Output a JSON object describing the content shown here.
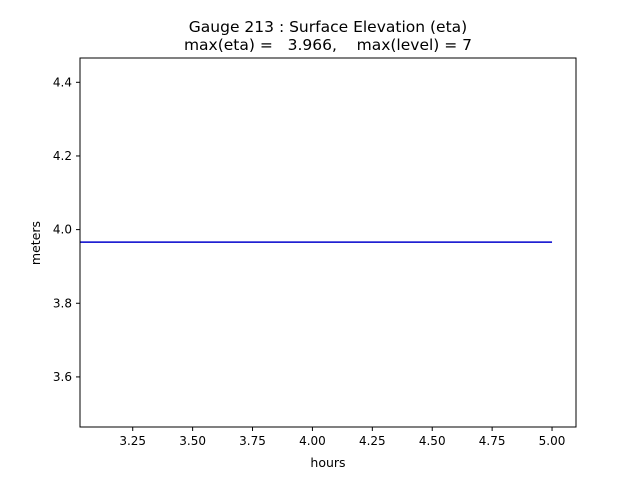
{
  "chart_data": {
    "type": "line",
    "title": "Gauge 213 : Surface Elevation (eta)",
    "subtitle": "max(eta) =   3.966,    max(level) = 7",
    "xlabel": "hours",
    "ylabel": "meters",
    "xlim": [
      3.03,
      5.1
    ],
    "ylim": [
      3.464,
      4.466
    ],
    "xticks": [
      3.25,
      3.5,
      3.75,
      4.0,
      4.25,
      4.5,
      4.75,
      5.0
    ],
    "xtick_labels": [
      "3.25",
      "3.50",
      "3.75",
      "4.00",
      "4.25",
      "4.50",
      "4.75",
      "5.00"
    ],
    "yticks": [
      3.6,
      3.8,
      4.0,
      4.2,
      4.4
    ],
    "ytick_labels": [
      "3.6",
      "3.8",
      "4.0",
      "4.2",
      "4.4"
    ],
    "grid": false,
    "series": [
      {
        "color": "#0000cc",
        "x": [
          3.03,
          5.0
        ],
        "y": [
          3.966,
          3.966
        ]
      }
    ]
  }
}
